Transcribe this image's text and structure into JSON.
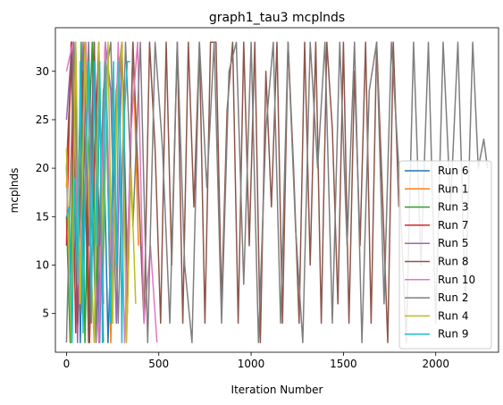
{
  "chart_data": {
    "type": "line",
    "title": "graph1_tau3 mcplnds",
    "xlabel": "Iteration Number",
    "ylabel": "mcplnds",
    "xlim": [
      -60,
      2340
    ],
    "ylim": [
      1.0,
      34.5
    ],
    "xticks": [
      0,
      500,
      1000,
      1500,
      2000
    ],
    "yticks": [
      5,
      10,
      15,
      20,
      25,
      30
    ],
    "grid": false,
    "legend_position": "center-right",
    "series": [
      {
        "name": "Run 6",
        "color": "#1f77b4",
        "x": [
          0,
          25,
          50,
          75,
          100,
          125,
          150,
          175,
          200,
          225,
          250
        ],
        "y": [
          20,
          5,
          33,
          2,
          28,
          12,
          33,
          4,
          25,
          2,
          18
        ]
      },
      {
        "name": "Run 1",
        "color": "#ff7f0e",
        "x": [
          0,
          30,
          60,
          90,
          120,
          150,
          180,
          210,
          240,
          270,
          300,
          330,
          360,
          390
        ],
        "y": [
          18,
          33,
          4,
          30,
          2,
          33,
          10,
          33,
          2,
          25,
          33,
          5,
          33,
          12
        ]
      },
      {
        "name": "Run 3",
        "color": "#2ca02c",
        "x": [
          0,
          20,
          40,
          60,
          80,
          100,
          120,
          140,
          160,
          180,
          200
        ],
        "y": [
          15,
          2,
          33,
          8,
          33,
          2,
          22,
          33,
          4,
          30,
          2
        ]
      },
      {
        "name": "Run 7",
        "color": "#d62728",
        "x": [
          0,
          25,
          50,
          75,
          100,
          125,
          150,
          175,
          200
        ],
        "y": [
          12,
          33,
          3,
          27,
          33,
          2,
          20,
          33,
          6
        ]
      },
      {
        "name": "Run 5",
        "color": "#9467bd",
        "x": [
          0,
          30,
          60,
          90,
          120,
          150,
          180,
          210,
          240,
          270,
          300,
          330,
          360
        ],
        "y": [
          25,
          33,
          2,
          33,
          15,
          33,
          2,
          33,
          28,
          4,
          33,
          10,
          33
        ]
      },
      {
        "name": "Run 8",
        "color": "#8c564b",
        "x": [
          0,
          30,
          60,
          90,
          120,
          150,
          180,
          210,
          240,
          270,
          300,
          330,
          360,
          390,
          420,
          450,
          480,
          510,
          540,
          570,
          600,
          630,
          660,
          690,
          720,
          750,
          780,
          810,
          840,
          870,
          900,
          930,
          960,
          990,
          1020,
          1050,
          1080,
          1110,
          1140,
          1170,
          1200,
          1230,
          1260,
          1290,
          1320,
          1350,
          1380,
          1410,
          1440,
          1470,
          1500,
          1530,
          1560,
          1590,
          1620,
          1650,
          1680,
          1710,
          1740,
          1770,
          1800
        ],
        "y": [
          20,
          33,
          4,
          30,
          2,
          33,
          12,
          33,
          4,
          28,
          33,
          6,
          33,
          18,
          4,
          33,
          22,
          4,
          33,
          10,
          33,
          4,
          33,
          16,
          33,
          4,
          33,
          33,
          6,
          26,
          33,
          4,
          33,
          12,
          33,
          2,
          30,
          16,
          33,
          4,
          33,
          20,
          4,
          33,
          10,
          33,
          4,
          33,
          24,
          6,
          33,
          4,
          30,
          12,
          33,
          4,
          33,
          18,
          2,
          33,
          16
        ]
      },
      {
        "name": "Run 10",
        "color": "#e377c2",
        "x": [
          0,
          35,
          70,
          105,
          140,
          175,
          210,
          245,
          280,
          315,
          350,
          385,
          420,
          455,
          490
        ],
        "y": [
          30,
          33,
          6,
          33,
          14,
          2,
          33,
          8,
          33,
          2,
          24,
          33,
          4,
          12,
          2
        ]
      },
      {
        "name": "Run 2",
        "color": "#7f7f7f",
        "x": [
          0,
          40,
          80,
          120,
          160,
          200,
          240,
          280,
          320,
          360,
          400,
          440,
          480,
          520,
          560,
          600,
          640,
          680,
          720,
          760,
          800,
          840,
          880,
          920,
          960,
          1000,
          1040,
          1080,
          1120,
          1160,
          1200,
          1240,
          1280,
          1320,
          1360,
          1400,
          1440,
          1480,
          1520,
          1560,
          1600,
          1640,
          1680,
          1720,
          1760,
          1800,
          1840,
          1880,
          1920,
          1960,
          2000,
          2040,
          2080,
          2120,
          2160,
          2200,
          2230,
          2260,
          2280
        ],
        "y": [
          2,
          33,
          5,
          33,
          2,
          28,
          33,
          4,
          33,
          14,
          33,
          2,
          33,
          22,
          4,
          33,
          10,
          2,
          33,
          18,
          33,
          4,
          30,
          33,
          8,
          33,
          2,
          24,
          33,
          4,
          33,
          14,
          2,
          33,
          20,
          33,
          4,
          33,
          12,
          33,
          2,
          28,
          33,
          6,
          33,
          20,
          2,
          33,
          10,
          33,
          4,
          33,
          16,
          33,
          6,
          33,
          20,
          23,
          20
        ]
      },
      {
        "name": "Run 4",
        "color": "#bcbd22",
        "x": [
          0,
          25,
          50,
          75,
          100,
          125,
          150,
          175,
          200,
          225,
          250,
          275,
          300,
          325,
          350,
          375
        ],
        "y": [
          22,
          2,
          33,
          6,
          33,
          14,
          2,
          33,
          10,
          33,
          4,
          28,
          33,
          2,
          20,
          6
        ]
      },
      {
        "name": "Run 9",
        "color": "#17becf",
        "x": [
          0,
          15,
          30,
          45,
          60,
          75,
          90,
          105,
          120,
          135,
          150,
          165,
          180,
          195,
          210,
          225,
          240,
          255,
          270,
          285,
          300,
          315,
          330,
          345
        ],
        "y": [
          15,
          16,
          2,
          19,
          8,
          31,
          3,
          22,
          31,
          4,
          31,
          12,
          31,
          2,
          31,
          18,
          4,
          31,
          10,
          31,
          2,
          26,
          31,
          31
        ]
      }
    ]
  }
}
